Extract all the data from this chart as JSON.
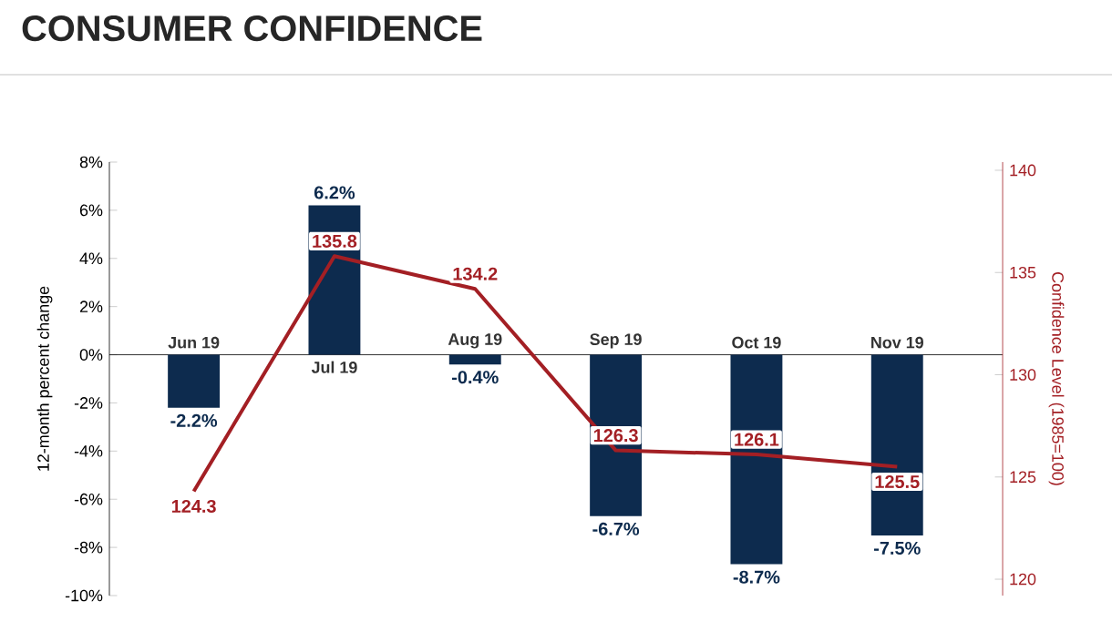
{
  "chart_data": {
    "type": "bar",
    "title": "CONSUMER CONFIDENCE",
    "ylabel": "12-month percent change",
    "y2label": "Confidence Level (1985=100)",
    "categories": [
      "Jun 19",
      "Jul 19",
      "Aug 19",
      "Sep 19",
      "Oct 19",
      "Nov 19"
    ],
    "series": [
      {
        "color": "#0d2b4e",
        "values": [
          -2.2,
          6.2,
          -0.4,
          -6.7,
          -8.7,
          -7.5
        ],
        "value_labels": [
          "-2.2%",
          "6.2%",
          "-0.4%",
          "-6.7%",
          "-8.7%",
          "-7.5%"
        ]
      },
      {
        "type": "line",
        "axis": "y2",
        "color": "#a31f24",
        "values": [
          124.3,
          135.8,
          134.2,
          126.3,
          126.1,
          125.5
        ],
        "value_labels": [
          "124.3",
          "135.8",
          "134.2",
          "126.3",
          "126.1",
          "125.5"
        ]
      }
    ],
    "ylim": [
      -10,
      8
    ],
    "yticks": [
      {
        "value": -10,
        "label": "-10%"
      },
      {
        "value": -8,
        "label": "-8%"
      },
      {
        "value": -6,
        "label": "-6%"
      },
      {
        "value": -4,
        "label": "-4%"
      },
      {
        "value": -2,
        "label": "-2%"
      },
      {
        "value": 0,
        "label": "0%"
      },
      {
        "value": 2,
        "label": "2%"
      },
      {
        "value": 4,
        "label": "4%"
      },
      {
        "value": 6,
        "label": "6%"
      },
      {
        "value": 8,
        "label": "8%"
      }
    ],
    "y2lim": [
      119.2,
      140.4
    ],
    "y2ticks": [
      120,
      125,
      130,
      135,
      140
    ],
    "grid": false
  }
}
